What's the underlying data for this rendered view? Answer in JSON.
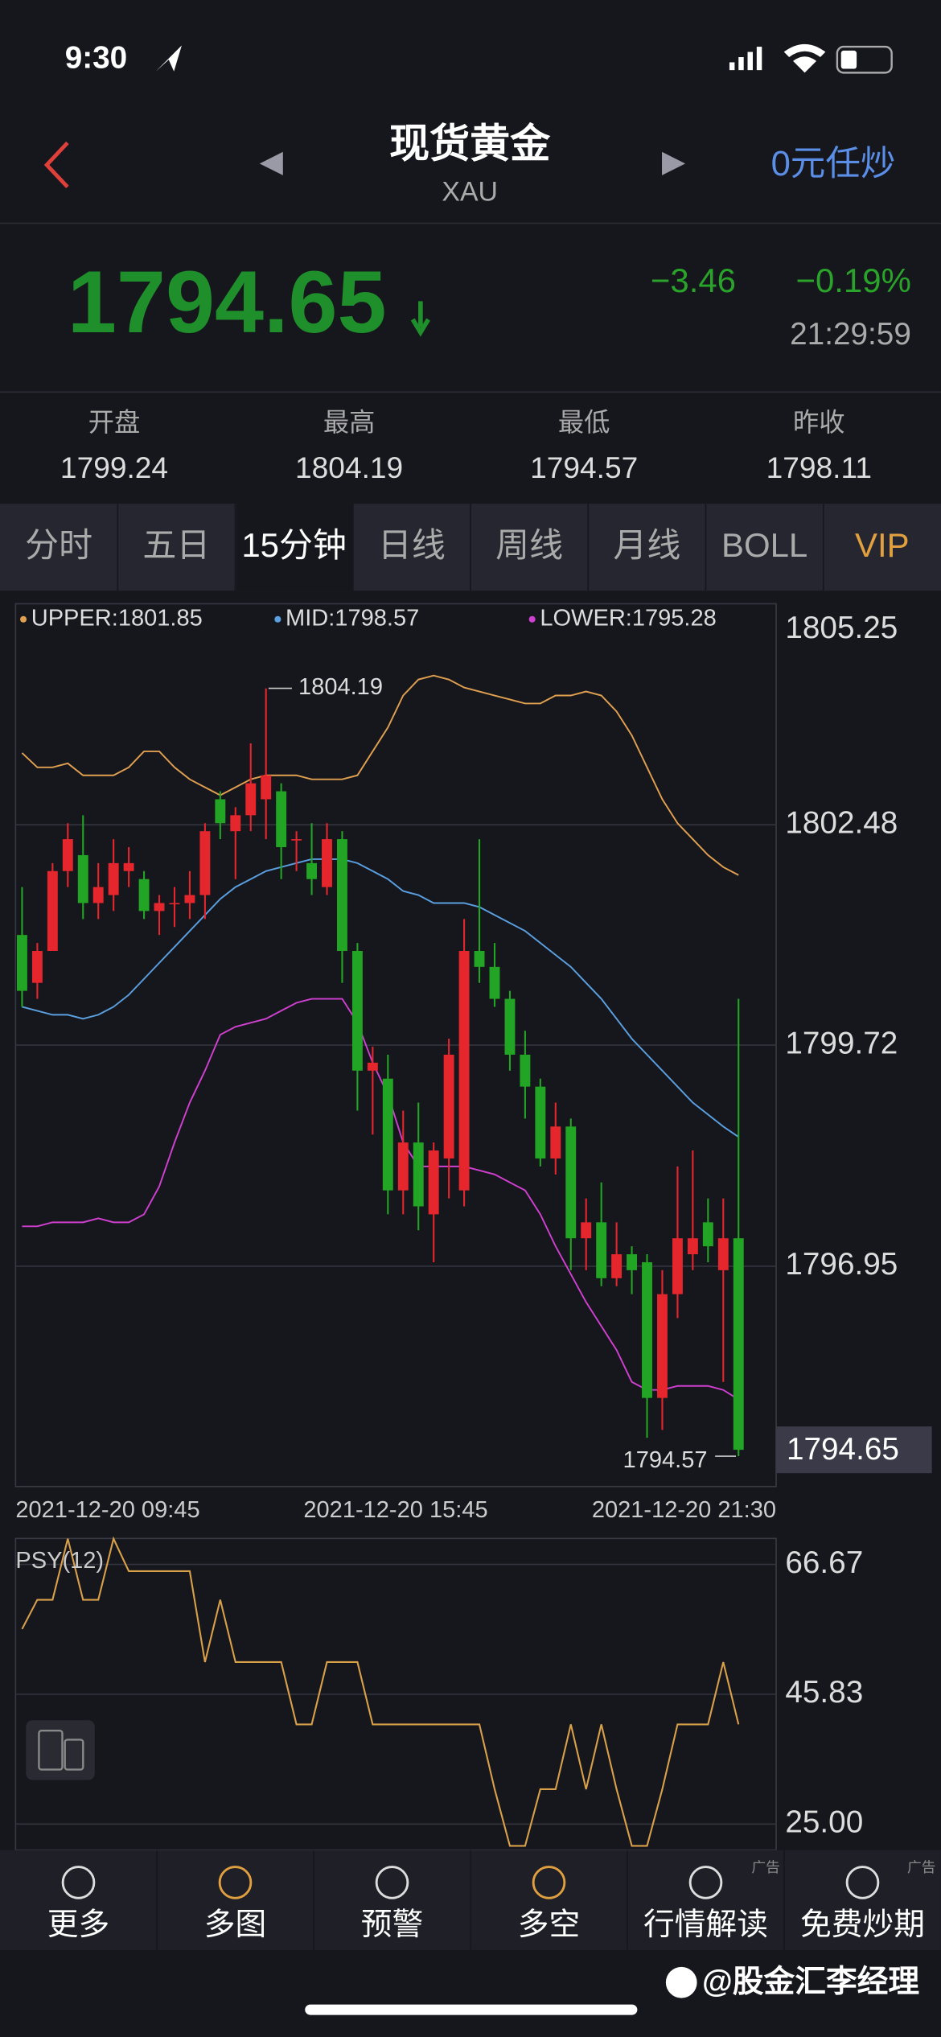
{
  "status_bar": {
    "time": "9:30"
  },
  "header": {
    "title": "现货黄金",
    "subtitle": "XAU",
    "action": "0元任炒"
  },
  "quote": {
    "price": "1794.65",
    "change": "−3.46",
    "change_pct": "−0.19%",
    "time": "21:29:59"
  },
  "stats": [
    {
      "label": "开盘",
      "value": "1799.24"
    },
    {
      "label": "最高",
      "value": "1804.19"
    },
    {
      "label": "最低",
      "value": "1794.57"
    },
    {
      "label": "昨收",
      "value": "1798.11"
    }
  ],
  "tabs": [
    "分时",
    "五日",
    "15分钟",
    "日线",
    "周线",
    "月线",
    "BOLL",
    "VIP"
  ],
  "chart_data": [
    {
      "type": "candlestick",
      "categories": [
        "2021-12-20 09:45",
        null,
        null,
        null,
        null,
        null,
        null,
        null,
        null,
        null,
        null,
        null,
        null,
        null,
        null,
        null,
        null,
        null,
        null,
        null,
        null,
        null,
        null,
        null,
        "2021-12-20 15:45",
        null,
        null,
        null,
        null,
        null,
        null,
        null,
        null,
        null,
        null,
        null,
        null,
        null,
        null,
        null,
        null,
        null,
        null,
        null,
        null,
        null,
        null,
        "2021-12-20 21:30"
      ],
      "open": [
        1801.1,
        1800.5,
        1800.9,
        1801.9,
        1802.1,
        1801.5,
        1801.6,
        1801.9,
        1801.8,
        1801.4,
        1801.5,
        1801.5,
        1801.6,
        1802.8,
        1802.4,
        1802.6,
        1802.8,
        1802.9,
        1802.3,
        1802.0,
        1801.7,
        1802.3,
        1800.9,
        1799.4,
        1799.3,
        1797.9,
        1798.5,
        1797.6,
        1798.3,
        1797.9,
        1800.9,
        1800.7,
        1800.3,
        1799.6,
        1799.2,
        1798.3,
        1798.7,
        1797.3,
        1797.5,
        1796.8,
        1797.1,
        1797.0,
        1795.3,
        1796.6,
        1797.1,
        1797.5,
        1796.9,
        1797.3
      ],
      "high": [
        1801.7,
        1801.0,
        1802.0,
        1802.5,
        1802.6,
        1802.0,
        1802.3,
        1802.2,
        1801.9,
        1801.6,
        1801.7,
        1801.9,
        1802.5,
        1802.9,
        1802.7,
        1803.5,
        1804.19,
        1803.0,
        1802.4,
        1802.5,
        1802.5,
        1802.4,
        1801.0,
        1799.7,
        1799.6,
        1798.9,
        1799.0,
        1798.5,
        1799.8,
        1801.3,
        1802.3,
        1801.0,
        1800.4,
        1799.9,
        1799.3,
        1799.0,
        1798.8,
        1797.8,
        1798.0,
        1797.5,
        1797.2,
        1797.1,
        1796.9,
        1798.2,
        1798.4,
        1797.8,
        1797.8,
        1800.3
      ],
      "low": [
        1800.2,
        1800.3,
        1800.9,
        1801.7,
        1801.3,
        1801.3,
        1801.4,
        1801.7,
        1801.3,
        1801.1,
        1801.2,
        1801.3,
        1801.3,
        1802.3,
        1801.8,
        1802.4,
        1802.3,
        1801.8,
        1801.9,
        1801.6,
        1801.6,
        1800.5,
        1798.9,
        1798.6,
        1797.6,
        1797.6,
        1797.4,
        1797.0,
        1797.8,
        1797.7,
        1800.5,
        1800.2,
        1799.4,
        1798.8,
        1798.2,
        1798.1,
        1796.9,
        1796.9,
        1796.7,
        1796.7,
        1796.6,
        1794.8,
        1794.9,
        1796.3,
        1796.9,
        1797.0,
        1795.5,
        1794.57
      ],
      "close": [
        1800.4,
        1800.9,
        1801.9,
        1802.3,
        1801.5,
        1801.7,
        1802.0,
        1802.0,
        1801.4,
        1801.5,
        1801.5,
        1801.6,
        1802.4,
        1802.5,
        1802.6,
        1803.0,
        1803.1,
        1802.2,
        1802.3,
        1801.8,
        1802.3,
        1800.9,
        1799.4,
        1799.5,
        1797.9,
        1798.5,
        1797.7,
        1798.4,
        1799.6,
        1800.9,
        1800.7,
        1800.3,
        1799.6,
        1799.2,
        1798.3,
        1798.7,
        1797.3,
        1797.5,
        1796.8,
        1797.1,
        1796.9,
        1795.3,
        1796.6,
        1797.3,
        1797.3,
        1797.2,
        1797.3,
        1794.65
      ],
      "up_color": "#e5262d",
      "down_color": "#22a524",
      "series": [
        {
          "name": "UPPER:1801.85",
          "color": "#e0a050",
          "values": [
            1803.38,
            1803.2,
            1803.2,
            1803.25,
            1803.1,
            1803.1,
            1803.1,
            1803.2,
            1803.4,
            1803.4,
            1803.2,
            1803.05,
            1802.95,
            1802.85,
            1802.95,
            1803.05,
            1803.1,
            1803.1,
            1803.1,
            1803.05,
            1803.05,
            1803.05,
            1803.1,
            1803.4,
            1803.7,
            1804.1,
            1804.3,
            1804.35,
            1804.3,
            1804.2,
            1804.15,
            1804.1,
            1804.05,
            1804.0,
            1804.0,
            1804.1,
            1804.1,
            1804.15,
            1804.1,
            1803.9,
            1803.6,
            1803.2,
            1802.8,
            1802.5,
            1802.3,
            1802.1,
            1801.95,
            1801.85
          ]
        },
        {
          "name": "MID:1798.57",
          "color": "#5aa0e0",
          "values": [
            1800.2,
            1800.15,
            1800.1,
            1800.1,
            1800.05,
            1800.1,
            1800.2,
            1800.35,
            1800.55,
            1800.75,
            1800.95,
            1801.15,
            1801.35,
            1801.55,
            1801.7,
            1801.8,
            1801.9,
            1801.95,
            1802.0,
            1802.05,
            1802.05,
            1802.05,
            1802.0,
            1801.9,
            1801.8,
            1801.65,
            1801.6,
            1801.5,
            1801.5,
            1801.5,
            1801.45,
            1801.35,
            1801.25,
            1801.15,
            1801.0,
            1800.85,
            1800.7,
            1800.5,
            1800.3,
            1800.05,
            1799.8,
            1799.6,
            1799.4,
            1799.2,
            1799.0,
            1798.85,
            1798.7,
            1798.57
          ]
        },
        {
          "name": "LOWER:1795.28",
          "color": "#d040d0",
          "values": [
            1797.45,
            1797.45,
            1797.5,
            1797.5,
            1797.5,
            1797.55,
            1797.5,
            1797.5,
            1797.6,
            1797.95,
            1798.5,
            1799.0,
            1799.4,
            1799.85,
            1799.95,
            1800.0,
            1800.05,
            1800.15,
            1800.25,
            1800.3,
            1800.3,
            1800.3,
            1800.0,
            1799.5,
            1799.1,
            1798.5,
            1798.2,
            1798.2,
            1798.2,
            1798.2,
            1798.15,
            1798.1,
            1798.0,
            1797.9,
            1797.6,
            1797.2,
            1796.85,
            1796.5,
            1796.2,
            1795.9,
            1795.5,
            1795.4,
            1795.4,
            1795.45,
            1795.45,
            1795.45,
            1795.4,
            1795.28
          ]
        }
      ],
      "ylim": [
        1794.19,
        1805.25
      ],
      "yticks": [
        1805.25,
        1802.48,
        1799.72,
        1796.95
      ],
      "high_label": 1804.19,
      "low_label": 1794.57,
      "last_price": 1794.65,
      "grid": true
    },
    {
      "type": "line",
      "title": "PSY(12)",
      "series": [
        {
          "color": "#d9a04a",
          "values": [
            56.3,
            61.0,
            61.0,
            70.8,
            61.0,
            61.0,
            70.8,
            65.6,
            65.6,
            65.6,
            65.6,
            65.6,
            51.0,
            61.0,
            51.0,
            51.0,
            51.0,
            51.0,
            41.0,
            41.0,
            51.0,
            51.0,
            51.0,
            41.0,
            41.0,
            41.0,
            41.0,
            41.0,
            41.0,
            41.0,
            41.0,
            30.6,
            21.5,
            21.5,
            30.6,
            30.6,
            41.0,
            30.6,
            41.0,
            30.6,
            21.5,
            21.5,
            30.6,
            41.0,
            41.0,
            41.0,
            51.0,
            41.0
          ]
        }
      ],
      "ylim": [
        20.83,
        70.84
      ],
      "yticks": [
        66.67,
        45.83,
        {
          "value": 25,
          "label": "25.00"
        }
      ],
      "grid": true
    }
  ],
  "nav": [
    "更多",
    "多图",
    "预警",
    "多空",
    "行情解读",
    "免费炒期"
  ],
  "ad_labels": [
    "广告",
    "广告"
  ],
  "watermark": "@股金汇李经理"
}
